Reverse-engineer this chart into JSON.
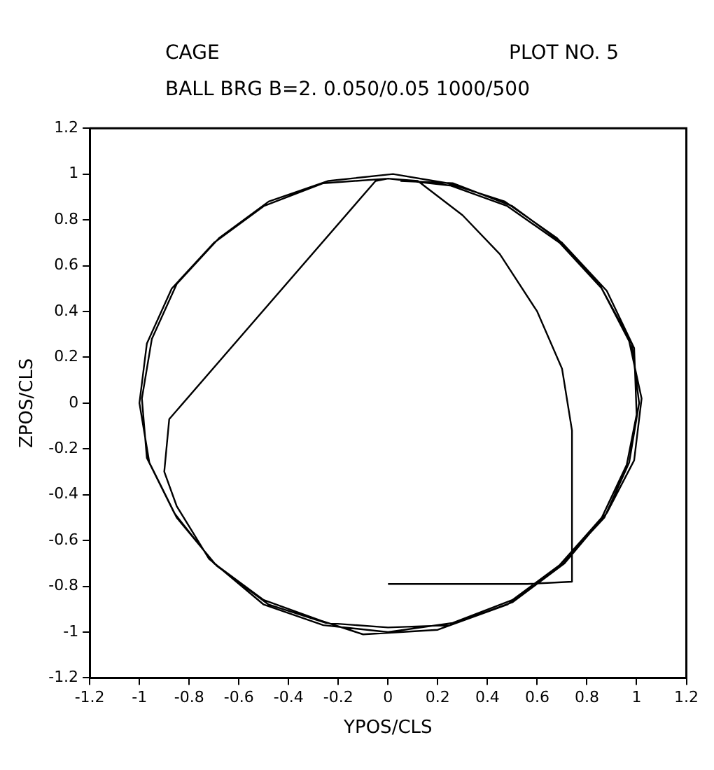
{
  "chart_data": {
    "type": "line",
    "title": "CAGE",
    "subtitle": "BALL BRG B=2. 0.050/0.05 1000/500",
    "annotations": [
      "PLOT NO. 5"
    ],
    "xlabel": "YPOS/CLS",
    "ylabel": "ZPOS/CLS",
    "xlim": [
      -1.2,
      1.2
    ],
    "ylim": [
      -1.2,
      1.2
    ],
    "xticks": [
      -1.2,
      -1,
      -0.8,
      -0.6,
      -0.4,
      -0.2,
      0,
      0.2,
      0.4,
      0.6,
      0.8,
      1,
      1.2
    ],
    "yticks": [
      -1.2,
      -1,
      -0.8,
      -0.6,
      -0.4,
      -0.2,
      0,
      0.2,
      0.4,
      0.6,
      0.8,
      1,
      1.2
    ],
    "grid": false,
    "legend": false,
    "marker": "none",
    "line_style": "solid",
    "series": [
      {
        "color": "#000000",
        "x": [
          0,
          0.56,
          0.74,
          0.74,
          0.7,
          0.6,
          0.45,
          0.3,
          0.12,
          0,
          -0.05,
          -0.88,
          -0.9,
          -0.85,
          -0.72,
          -0.5,
          -0.26,
          0,
          0.26,
          0.5,
          0.7,
          0.87,
          0.97,
          1.01,
          0.98,
          0.86,
          0.69,
          0.48,
          0.25,
          0,
          -0.26,
          -0.5,
          -0.7,
          -0.87,
          -0.97,
          -1,
          -0.96,
          -0.85,
          -0.69,
          -0.48,
          -0.25,
          0,
          0.25,
          0.5,
          0.71,
          0.88,
          0.99,
          1.02,
          0.97,
          0.85,
          0.68,
          0.47,
          0.24,
          0.02,
          -0.24,
          -0.48,
          -0.68,
          -0.85,
          -0.95,
          -0.99,
          -0.97,
          -0.86,
          -0.7,
          -0.5,
          -0.27,
          -0.1,
          0.2,
          0.48,
          0.68,
          0.86,
          0.96,
          1,
          0.99,
          0.88,
          0.7,
          0.5,
          0.26,
          0.05
        ],
        "values": [
          -0.79,
          -0.79,
          -0.78,
          -0.12,
          0.15,
          0.4,
          0.65,
          0.82,
          0.97,
          0.98,
          0.97,
          -0.07,
          -0.3,
          -0.45,
          -0.68,
          -0.88,
          -0.97,
          -1,
          -0.96,
          -0.86,
          -0.7,
          -0.5,
          -0.26,
          0,
          0.26,
          0.5,
          0.7,
          0.86,
          0.95,
          0.98,
          0.96,
          0.86,
          0.7,
          0.5,
          0.26,
          0,
          -0.26,
          -0.5,
          -0.71,
          -0.88,
          -0.96,
          -0.98,
          -0.97,
          -0.87,
          -0.7,
          -0.48,
          -0.25,
          0.02,
          0.27,
          0.52,
          0.72,
          0.88,
          0.96,
          1,
          0.97,
          0.88,
          0.72,
          0.52,
          0.28,
          0.02,
          -0.24,
          -0.48,
          -0.7,
          -0.86,
          -0.95,
          -1.01,
          -0.99,
          -0.88,
          -0.72,
          -0.5,
          -0.27,
          -0.05,
          0.24,
          0.49,
          0.7,
          0.86,
          0.96,
          0.97
        ]
      }
    ]
  }
}
